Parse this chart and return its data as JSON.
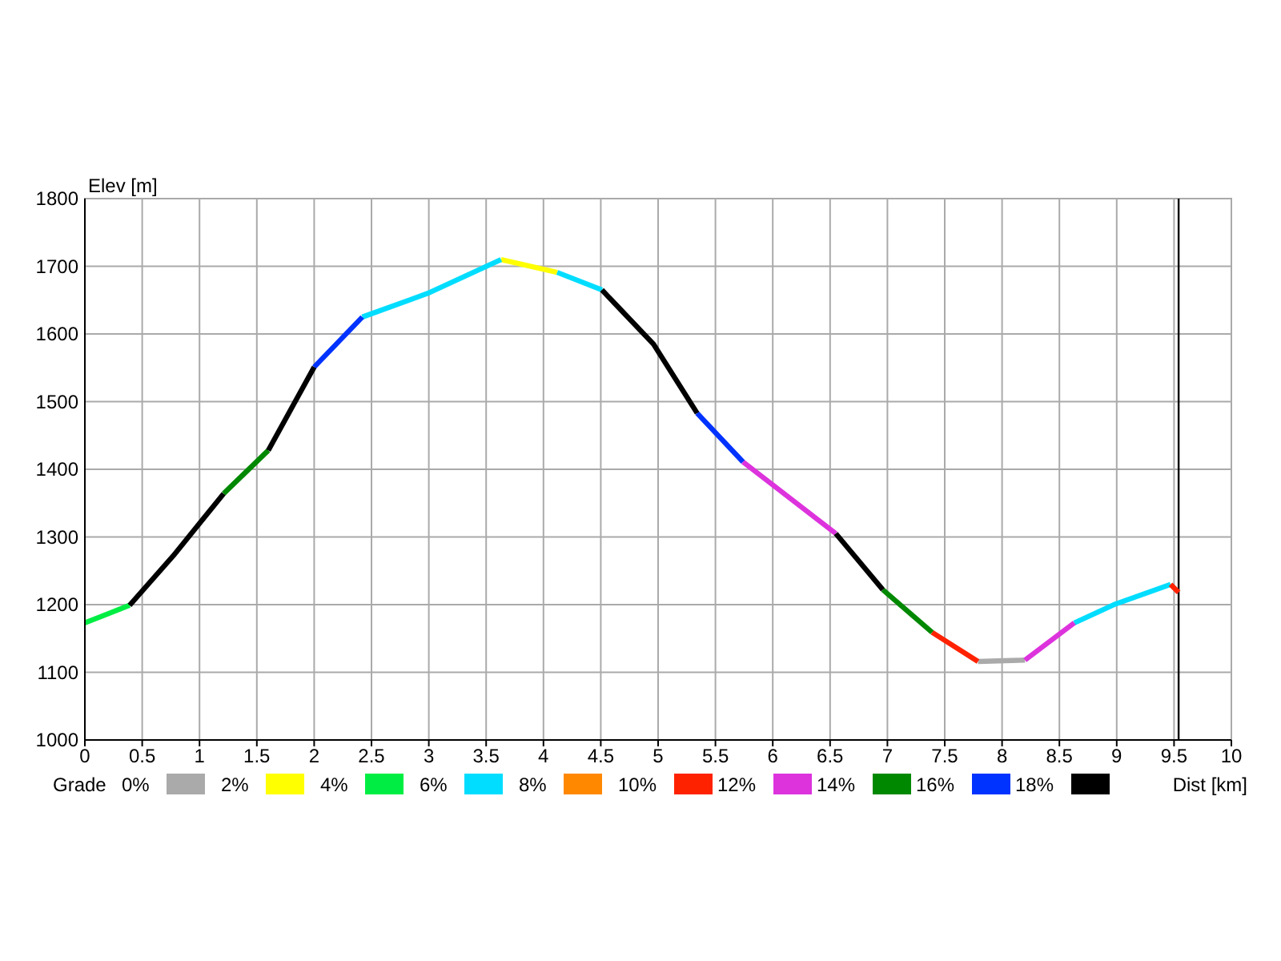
{
  "chart_data": {
    "type": "line",
    "xlabel": "Dist [km]",
    "ylabel": "Elev [m]",
    "legend_title": "Grade",
    "legend": "bottom",
    "grid": true,
    "marker": "none",
    "line_style": "solid",
    "xlim": [
      0,
      10
    ],
    "xticks": [
      0,
      0.5,
      1,
      1.5,
      2,
      2.5,
      3,
      3.5,
      4,
      4.5,
      5,
      5.5,
      6,
      6.5,
      7,
      7.5,
      8,
      8.5,
      9,
      9.5,
      10
    ],
    "ylim": [
      1000,
      1800
    ],
    "yticks": [
      1000,
      1100,
      1200,
      1300,
      1400,
      1500,
      1600,
      1700,
      1800
    ],
    "ref_lines": [
      {
        "axis": "x",
        "value": 9.54,
        "color": "#000000"
      }
    ],
    "series": [
      {
        "name": "0%",
        "color": "#aaaaaa",
        "x": [
          7.79,
          8.2
        ],
        "values": [
          1116,
          1118
        ]
      },
      {
        "name": "2%",
        "color": "#ffff00",
        "x": [
          3.63,
          4.12
        ],
        "values": [
          1710,
          1691
        ]
      },
      {
        "name": "4%",
        "color": "#00ee44",
        "x": [
          0,
          0.39
        ],
        "values": [
          1173,
          1199
        ]
      },
      {
        "name": "6%",
        "color": "#00ddff",
        "x": [
          2.42,
          2.99,
          3.63,
          null,
          4.12,
          4.51,
          null,
          8.63,
          8.99,
          9.47
        ],
        "values": [
          1625,
          1660,
          1710,
          null,
          1691,
          1665,
          null,
          1173,
          1201,
          1230
        ]
      },
      {
        "name": "8%",
        "color": "#ff8800"
      },
      {
        "name": "10%",
        "color": "#ff2200",
        "x": [
          7.39,
          7.79,
          null,
          9.47,
          9.54
        ],
        "values": [
          1159,
          1116,
          null,
          1230,
          1218
        ]
      },
      {
        "name": "12%",
        "color": "#dd33dd",
        "x": [
          5.74,
          6.55,
          null,
          8.2,
          8.63
        ],
        "values": [
          1411,
          1305,
          null,
          1118,
          1173
        ]
      },
      {
        "name": "14%",
        "color": "#008800",
        "x": [
          1.21,
          1.6,
          null,
          6.96,
          7.39
        ],
        "values": [
          1364,
          1428,
          null,
          1222,
          1159
        ]
      },
      {
        "name": "16%",
        "color": "#0033ff",
        "x": [
          2.0,
          2.42,
          null,
          5.34,
          5.74
        ],
        "values": [
          1551,
          1625,
          null,
          1483,
          1411
        ]
      },
      {
        "name": "18%",
        "color": "#000000",
        "x": [
          0.39,
          0.77,
          1.21,
          null,
          1.6,
          2.0,
          null,
          4.51,
          4.96,
          5.34,
          null,
          6.55,
          6.96
        ],
        "values": [
          1199,
          1272,
          1364,
          null,
          1428,
          1551,
          null,
          1665,
          1585,
          1483,
          null,
          1305,
          1222
        ]
      }
    ]
  }
}
